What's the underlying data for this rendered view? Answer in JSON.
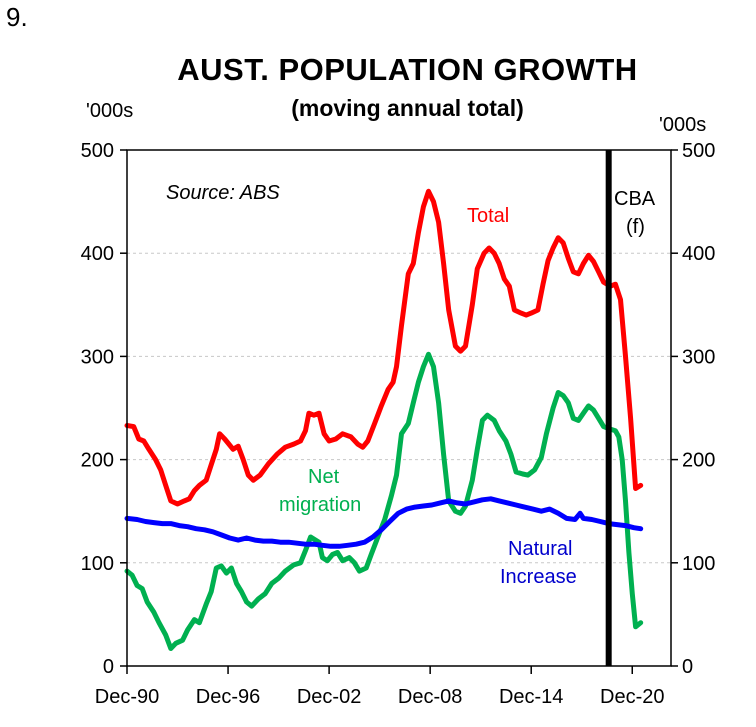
{
  "figure_number": "9.",
  "chart_data": {
    "type": "line",
    "title": "AUST. POPULATION GROWTH",
    "subtitle": "(moving annual total)",
    "ylabel_left": "'000s",
    "ylabel_right": "'000s",
    "ylim": [
      0,
      500
    ],
    "yticks": [
      0,
      100,
      200,
      300,
      400,
      500
    ],
    "ytick_labels": [
      "0",
      "100",
      "200",
      "300",
      "400",
      "500"
    ],
    "xlim": [
      1990.9,
      2023.2
    ],
    "xticks": [
      1990.9,
      1996.9,
      2002.9,
      2008.9,
      2014.9,
      2020.9
    ],
    "xtick_labels": [
      "Dec-90",
      "Dec-96",
      "Dec-02",
      "Dec-08",
      "Dec-14",
      "Dec-20"
    ],
    "grid": "horizontal-dashed",
    "source": "Source: ABS",
    "forecast_marker": {
      "x": 2019.5,
      "label": "CBA (f)"
    },
    "series": [
      {
        "name": "Total",
        "color": "#ff0000",
        "points": [
          [
            1990.9,
            233
          ],
          [
            1991.3,
            232
          ],
          [
            1991.6,
            220
          ],
          [
            1991.9,
            218
          ],
          [
            1992.2,
            210
          ],
          [
            1992.6,
            200
          ],
          [
            1992.9,
            190
          ],
          [
            1993.2,
            175
          ],
          [
            1993.5,
            160
          ],
          [
            1993.9,
            157
          ],
          [
            1994.3,
            160
          ],
          [
            1994.6,
            162
          ],
          [
            1994.9,
            170
          ],
          [
            1995.2,
            175
          ],
          [
            1995.6,
            180
          ],
          [
            1995.9,
            195
          ],
          [
            1996.2,
            210
          ],
          [
            1996.4,
            225
          ],
          [
            1996.7,
            220
          ],
          [
            1996.9,
            216
          ],
          [
            1997.2,
            210
          ],
          [
            1997.5,
            213
          ],
          [
            1997.8,
            200
          ],
          [
            1998.1,
            185
          ],
          [
            1998.4,
            180
          ],
          [
            1998.8,
            185
          ],
          [
            1999.3,
            196
          ],
          [
            1999.8,
            205
          ],
          [
            2000.3,
            212
          ],
          [
            2000.8,
            215
          ],
          [
            2001.2,
            218
          ],
          [
            2001.5,
            228
          ],
          [
            2001.7,
            245
          ],
          [
            2002.0,
            243
          ],
          [
            2002.3,
            245
          ],
          [
            2002.6,
            225
          ],
          [
            2002.9,
            218
          ],
          [
            2003.3,
            220
          ],
          [
            2003.7,
            225
          ],
          [
            2004.2,
            222
          ],
          [
            2004.6,
            215
          ],
          [
            2004.9,
            212
          ],
          [
            2005.2,
            218
          ],
          [
            2005.6,
            235
          ],
          [
            2006.0,
            252
          ],
          [
            2006.4,
            268
          ],
          [
            2006.7,
            275
          ],
          [
            2006.9,
            290
          ],
          [
            2007.2,
            330
          ],
          [
            2007.6,
            380
          ],
          [
            2007.9,
            390
          ],
          [
            2008.2,
            420
          ],
          [
            2008.5,
            445
          ],
          [
            2008.8,
            460
          ],
          [
            2009.1,
            450
          ],
          [
            2009.4,
            430
          ],
          [
            2009.7,
            390
          ],
          [
            2010.0,
            345
          ],
          [
            2010.4,
            310
          ],
          [
            2010.7,
            305
          ],
          [
            2011.0,
            310
          ],
          [
            2011.4,
            350
          ],
          [
            2011.7,
            385
          ],
          [
            2012.1,
            400
          ],
          [
            2012.4,
            405
          ],
          [
            2012.7,
            400
          ],
          [
            2013.0,
            390
          ],
          [
            2013.3,
            375
          ],
          [
            2013.6,
            368
          ],
          [
            2013.9,
            345
          ],
          [
            2014.3,
            342
          ],
          [
            2014.6,
            340
          ],
          [
            2014.9,
            342
          ],
          [
            2015.3,
            345
          ],
          [
            2015.6,
            370
          ],
          [
            2015.9,
            393
          ],
          [
            2016.2,
            405
          ],
          [
            2016.5,
            415
          ],
          [
            2016.8,
            410
          ],
          [
            2017.1,
            395
          ],
          [
            2017.4,
            382
          ],
          [
            2017.7,
            380
          ],
          [
            2018.0,
            390
          ],
          [
            2018.3,
            398
          ],
          [
            2018.6,
            392
          ],
          [
            2018.9,
            382
          ],
          [
            2019.2,
            372
          ],
          [
            2019.6,
            368
          ],
          [
            2019.9,
            370
          ],
          [
            2020.2,
            355
          ],
          [
            2020.5,
            300
          ],
          [
            2020.8,
            240
          ],
          [
            2021.1,
            172
          ],
          [
            2021.4,
            175
          ]
        ]
      },
      {
        "name": "Net migration",
        "color": "#00b050",
        "points": [
          [
            1990.9,
            92
          ],
          [
            1991.2,
            88
          ],
          [
            1991.5,
            78
          ],
          [
            1991.8,
            75
          ],
          [
            1992.1,
            62
          ],
          [
            1992.5,
            52
          ],
          [
            1992.8,
            42
          ],
          [
            1993.2,
            30
          ],
          [
            1993.5,
            17
          ],
          [
            1993.8,
            22
          ],
          [
            1994.2,
            25
          ],
          [
            1994.5,
            35
          ],
          [
            1994.9,
            45
          ],
          [
            1995.2,
            42
          ],
          [
            1995.6,
            60
          ],
          [
            1995.9,
            72
          ],
          [
            1996.2,
            95
          ],
          [
            1996.5,
            97
          ],
          [
            1996.8,
            90
          ],
          [
            1997.1,
            95
          ],
          [
            1997.4,
            80
          ],
          [
            1997.7,
            72
          ],
          [
            1998.0,
            62
          ],
          [
            1998.3,
            58
          ],
          [
            1998.7,
            65
          ],
          [
            1999.1,
            70
          ],
          [
            1999.5,
            80
          ],
          [
            1999.9,
            85
          ],
          [
            2000.3,
            92
          ],
          [
            2000.8,
            98
          ],
          [
            2001.2,
            100
          ],
          [
            2001.5,
            112
          ],
          [
            2001.8,
            125
          ],
          [
            2002.1,
            122
          ],
          [
            2002.3,
            120
          ],
          [
            2002.5,
            105
          ],
          [
            2002.8,
            102
          ],
          [
            2003.1,
            108
          ],
          [
            2003.4,
            110
          ],
          [
            2003.7,
            102
          ],
          [
            2004.1,
            105
          ],
          [
            2004.4,
            100
          ],
          [
            2004.7,
            92
          ],
          [
            2005.1,
            95
          ],
          [
            2005.4,
            108
          ],
          [
            2005.8,
            125
          ],
          [
            2006.2,
            142
          ],
          [
            2006.6,
            165
          ],
          [
            2006.9,
            185
          ],
          [
            2007.2,
            225
          ],
          [
            2007.6,
            235
          ],
          [
            2007.9,
            255
          ],
          [
            2008.2,
            275
          ],
          [
            2008.5,
            290
          ],
          [
            2008.8,
            302
          ],
          [
            2009.1,
            290
          ],
          [
            2009.4,
            255
          ],
          [
            2009.7,
            205
          ],
          [
            2010.0,
            160
          ],
          [
            2010.4,
            150
          ],
          [
            2010.7,
            148
          ],
          [
            2011.0,
            155
          ],
          [
            2011.4,
            180
          ],
          [
            2011.7,
            210
          ],
          [
            2012.0,
            238
          ],
          [
            2012.3,
            243
          ],
          [
            2012.7,
            238
          ],
          [
            2013.0,
            228
          ],
          [
            2013.4,
            218
          ],
          [
            2013.7,
            205
          ],
          [
            2014.0,
            188
          ],
          [
            2014.4,
            186
          ],
          [
            2014.7,
            185
          ],
          [
            2015.1,
            190
          ],
          [
            2015.5,
            202
          ],
          [
            2015.8,
            225
          ],
          [
            2016.2,
            250
          ],
          [
            2016.5,
            265
          ],
          [
            2016.8,
            262
          ],
          [
            2017.1,
            255
          ],
          [
            2017.4,
            240
          ],
          [
            2017.7,
            238
          ],
          [
            2018.0,
            245
          ],
          [
            2018.3,
            252
          ],
          [
            2018.6,
            248
          ],
          [
            2018.9,
            240
          ],
          [
            2019.2,
            232
          ],
          [
            2019.5,
            230
          ],
          [
            2019.9,
            228
          ],
          [
            2020.1,
            222
          ],
          [
            2020.3,
            200
          ],
          [
            2020.5,
            160
          ],
          [
            2020.7,
            110
          ],
          [
            2020.9,
            70
          ],
          [
            2021.1,
            38
          ],
          [
            2021.4,
            42
          ]
        ]
      },
      {
        "name": "Natural Increase",
        "color": "#0000ff",
        "points": [
          [
            1990.9,
            143
          ],
          [
            1991.5,
            142
          ],
          [
            1992.0,
            140
          ],
          [
            1992.5,
            139
          ],
          [
            1993.0,
            138
          ],
          [
            1993.5,
            138
          ],
          [
            1994.0,
            136
          ],
          [
            1994.5,
            135
          ],
          [
            1995.0,
            133
          ],
          [
            1995.5,
            132
          ],
          [
            1996.0,
            130
          ],
          [
            1996.5,
            127
          ],
          [
            1997.0,
            124
          ],
          [
            1997.5,
            122
          ],
          [
            1998.0,
            124
          ],
          [
            1998.5,
            122
          ],
          [
            1999.0,
            121
          ],
          [
            1999.5,
            121
          ],
          [
            2000.0,
            120
          ],
          [
            2000.5,
            120
          ],
          [
            2001.0,
            119
          ],
          [
            2001.5,
            118
          ],
          [
            2002.0,
            118
          ],
          [
            2002.5,
            117
          ],
          [
            2003.0,
            116
          ],
          [
            2003.5,
            116
          ],
          [
            2004.0,
            117
          ],
          [
            2004.5,
            118
          ],
          [
            2005.0,
            120
          ],
          [
            2005.5,
            125
          ],
          [
            2006.0,
            132
          ],
          [
            2006.5,
            140
          ],
          [
            2007.0,
            148
          ],
          [
            2007.5,
            152
          ],
          [
            2008.0,
            154
          ],
          [
            2008.5,
            155
          ],
          [
            2009.0,
            156
          ],
          [
            2009.5,
            158
          ],
          [
            2010.0,
            160
          ],
          [
            2010.5,
            158
          ],
          [
            2011.0,
            157
          ],
          [
            2011.5,
            159
          ],
          [
            2012.0,
            161
          ],
          [
            2012.5,
            162
          ],
          [
            2013.0,
            160
          ],
          [
            2013.5,
            158
          ],
          [
            2014.0,
            156
          ],
          [
            2014.5,
            154
          ],
          [
            2015.0,
            152
          ],
          [
            2015.5,
            150
          ],
          [
            2016.0,
            152
          ],
          [
            2016.5,
            148
          ],
          [
            2017.0,
            143
          ],
          [
            2017.5,
            142
          ],
          [
            2017.8,
            148
          ],
          [
            2018.0,
            143
          ],
          [
            2018.5,
            142
          ],
          [
            2019.0,
            140
          ],
          [
            2019.5,
            138
          ],
          [
            2020.0,
            137
          ],
          [
            2020.5,
            136
          ],
          [
            2021.0,
            134
          ],
          [
            2021.4,
            133
          ]
        ]
      }
    ],
    "annotations": {
      "total_label": "Total",
      "net_migration_label_1": "Net",
      "net_migration_label_2": "migration",
      "natural_label_1": "Natural",
      "natural_label_2": "Increase",
      "cba_label_1": "CBA",
      "cba_label_2": "(f)"
    }
  }
}
